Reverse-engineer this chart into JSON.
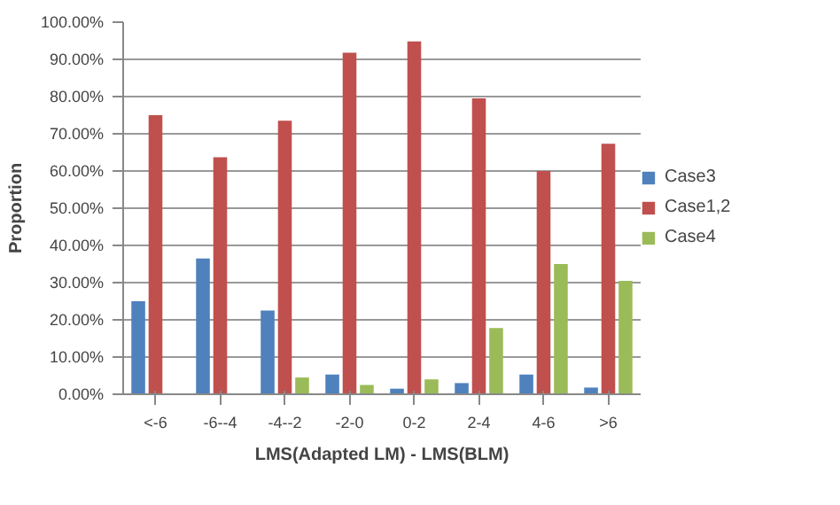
{
  "chart_data": {
    "type": "bar",
    "xlabel": "LMS(Adapted LM) - LMS(BLM)",
    "ylabel": "Proportion",
    "categories": [
      "<-6",
      "-6--4",
      "-4--2",
      "-2-0",
      "0-2",
      "2-4",
      "4-6",
      ">6"
    ],
    "series": [
      {
        "name": "Case3",
        "color": "#4f81bd",
        "values": [
          25,
          36.5,
          22.5,
          5.3,
          1.5,
          3,
          5.3,
          1.8
        ]
      },
      {
        "name": "Case1,2",
        "color": "#c0504d",
        "values": [
          75,
          63.7,
          73.5,
          91.8,
          94.8,
          79.5,
          60,
          67.3
        ]
      },
      {
        "name": "Case4",
        "color": "#9bbb59",
        "values": [
          0,
          0,
          4.5,
          2.5,
          4,
          17.8,
          35,
          30.5
        ]
      }
    ],
    "ylim": [
      0,
      100
    ],
    "yticks": [
      {
        "value": 0,
        "label": "0.00%"
      },
      {
        "value": 10,
        "label": "10.00%"
      },
      {
        "value": 20,
        "label": "20.00%"
      },
      {
        "value": 30,
        "label": "30.00%"
      },
      {
        "value": 40,
        "label": "40.00%"
      },
      {
        "value": 50,
        "label": "50.00%"
      },
      {
        "value": 60,
        "label": "60.00%"
      },
      {
        "value": 70,
        "label": "70.00%"
      },
      {
        "value": 80,
        "label": "80.00%"
      },
      {
        "value": 90,
        "label": "90.00%"
      },
      {
        "value": 100,
        "label": "100.00%"
      }
    ],
    "grid": "y",
    "legend": "right"
  }
}
